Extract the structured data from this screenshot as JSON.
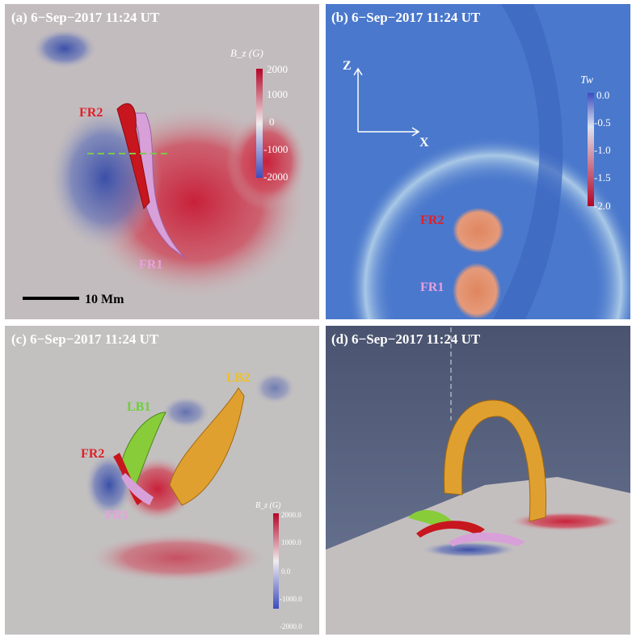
{
  "panels": [
    {
      "title": "(a) 6−Sep−2017 11:24 UT",
      "colorbar_label": "B_z (G)",
      "colorbar_ticks": [
        "2000",
        "1000",
        "0",
        "-1000",
        "-2000"
      ],
      "labels": [
        "FR2",
        "FR1"
      ],
      "scale_bar": "10 Mm"
    },
    {
      "title": "(b) 6−Sep−2017 11:24 UT",
      "axes": [
        "Z",
        "X"
      ],
      "colorbar_label": "Tw",
      "colorbar_ticks": [
        "0.0",
        "-0.5",
        "-1.0",
        "-1.5",
        "-2.0"
      ],
      "labels": [
        "FR2",
        "FR1"
      ]
    },
    {
      "title": "(c) 6−Sep−2017 11:24 UT",
      "labels": [
        "LB1",
        "LB2",
        "FR2",
        "FR1"
      ],
      "colorbar_label": "B_z (G)",
      "colorbar_ticks": [
        "2000.0",
        "1000.0",
        "0.0",
        "-1000.0",
        "-2000.0"
      ]
    },
    {
      "title": "(d) 6−Sep−2017 11:24 UT"
    }
  ]
}
